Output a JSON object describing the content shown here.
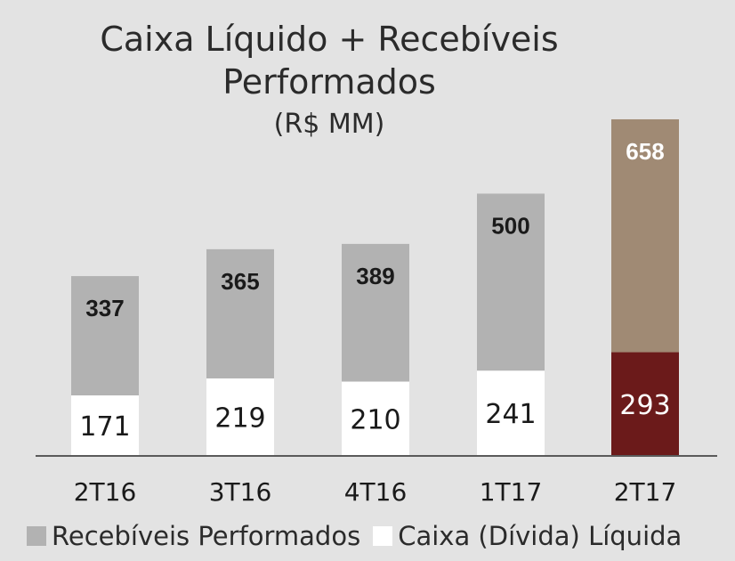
{
  "chart_data": {
    "type": "bar",
    "stacked": true,
    "title": "Caixa Líquido + Recebíveis Performados",
    "title_line1": "Caixa Líquido + Recebíveis",
    "title_line2": "Performados",
    "subtitle": "(R$ MM)",
    "categories": [
      "2T16",
      "3T16",
      "4T16",
      "1T17",
      "2T17"
    ],
    "series": [
      {
        "name": "Caixa (Dívida) Líquida",
        "values": [
          171,
          219,
          210,
          241,
          293
        ],
        "color": "#ffffff",
        "highlight_color": "#6b1a1a"
      },
      {
        "name": "Recebíveis Performados",
        "values": [
          337,
          365,
          389,
          500,
          658
        ],
        "color": "#b2b2b2",
        "highlight_color": "#a08a74"
      }
    ],
    "highlight_category": "2T17",
    "ylim": [
      0,
      1000
    ],
    "grid": false,
    "legend_position": "bottom"
  }
}
